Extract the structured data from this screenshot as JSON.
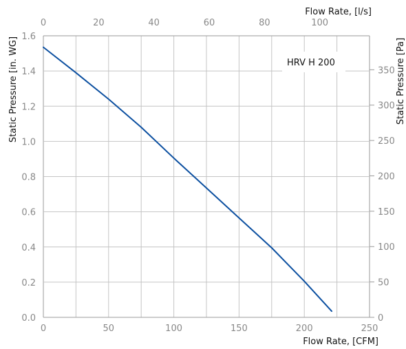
{
  "chart_data": {
    "type": "line",
    "title": "",
    "annotation": "HRV H 200",
    "xlabel": "Flow Rate, [CFM]",
    "xlabel_top": "Flow Rate, [l/s]",
    "ylabel": "Static Pressure [in. WG]",
    "ylabel_right": "Static Pressure [Pa]",
    "xlim": [
      0,
      250
    ],
    "ylim": [
      0,
      1.6
    ],
    "xlim_top": [
      0,
      118
    ],
    "ylim_right": [
      0,
      398
    ],
    "grid": true,
    "legend": "none",
    "x_ticks": [
      "0",
      "50",
      "100",
      "150",
      "200",
      "250"
    ],
    "x_ticks_top": [
      "0",
      "20",
      "40",
      "60",
      "80",
      "100"
    ],
    "y_ticks": [
      "0.0",
      "0.2",
      "0.4",
      "0.6",
      "0.8",
      "1.0",
      "1.2",
      "1.4",
      "1.6"
    ],
    "y_ticks_right": [
      "0",
      "50",
      "100",
      "150",
      "200",
      "250",
      "300",
      "350"
    ],
    "line_color": "#0b4fa0",
    "series": [
      {
        "name": "HRV H 200",
        "x": [
          0,
          25,
          50,
          75,
          100,
          125,
          150,
          175,
          200,
          221
        ],
        "y": [
          1.535,
          1.39,
          1.24,
          1.08,
          0.905,
          0.735,
          0.565,
          0.395,
          0.205,
          0.035
        ]
      }
    ]
  }
}
